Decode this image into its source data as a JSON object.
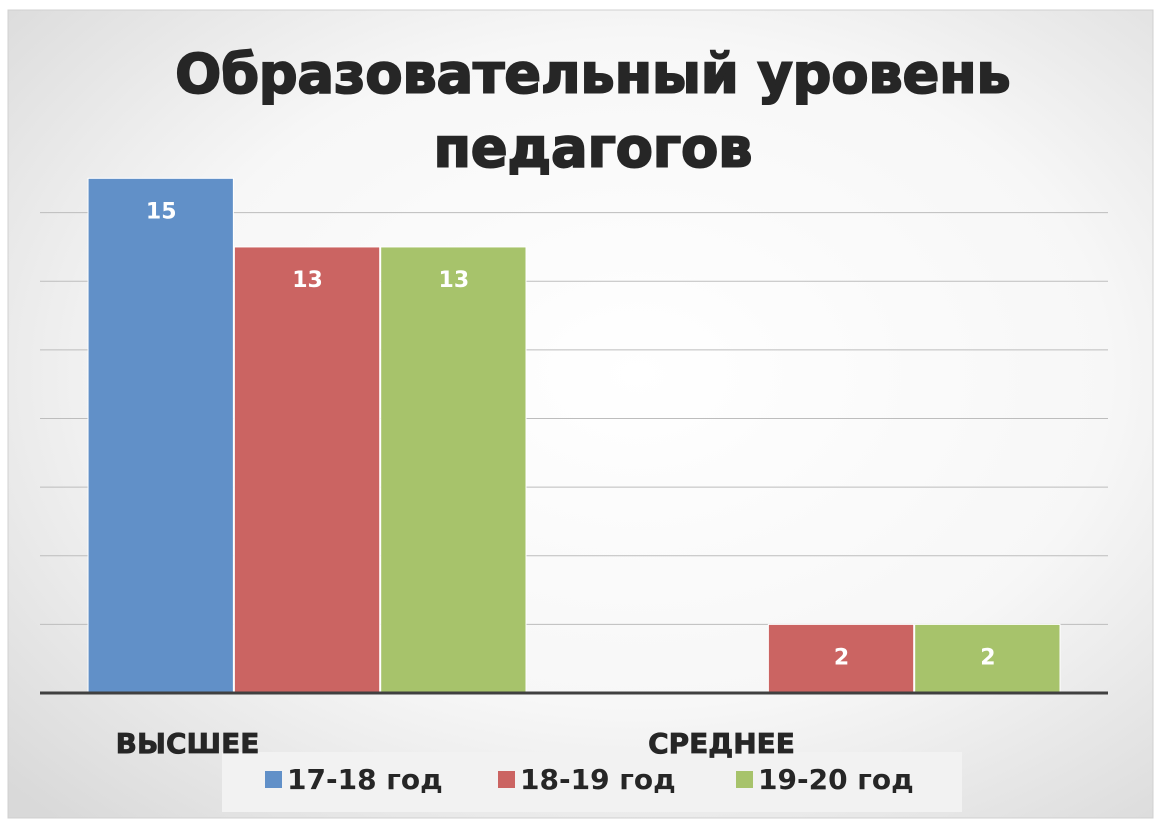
{
  "chart_data": {
    "type": "bar",
    "title": [
      "Образовательный уровень",
      "педагогов"
    ],
    "categories": [
      "ВЫСШЕЕ",
      "СРЕДНЕЕ"
    ],
    "series": [
      {
        "name": "17-18 год",
        "color": "#6190c8",
        "values": [
          15,
          null
        ]
      },
      {
        "name": "18-19 год",
        "color": "#cb6462",
        "values": [
          13,
          2
        ]
      },
      {
        "name": "19-20 год",
        "color": "#a7c36b",
        "values": [
          13,
          2
        ]
      }
    ],
    "ylim": [
      0,
      16
    ],
    "yticks": [
      0,
      2,
      4,
      6,
      8,
      10,
      12,
      14,
      16
    ],
    "grid": true,
    "legend": "bottom"
  }
}
